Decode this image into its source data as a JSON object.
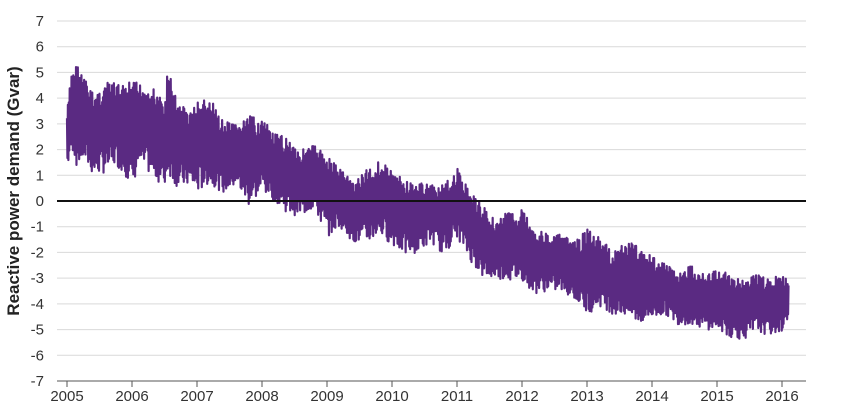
{
  "chart_data": {
    "type": "line",
    "title": "",
    "xlabel": "",
    "ylabel": "Reactive power demand (Gvar)",
    "x_ticks": [
      "2005",
      "2006",
      "2007",
      "2008",
      "2009",
      "2010",
      "2011",
      "2012",
      "2013",
      "2014",
      "2015",
      "2016"
    ],
    "y_ticks": [
      "7",
      "6",
      "5",
      "4",
      "3",
      "2",
      "1",
      "0",
      "-1",
      "-2",
      "-3",
      "-4",
      "-5",
      "-6",
      "-7"
    ],
    "xlim": [
      2005,
      2016.2
    ],
    "ylim": [
      -7,
      7
    ],
    "grid": true,
    "zero_line": true,
    "colors": {
      "series": "#5a2a82",
      "grid": "#d9d9d9",
      "zero_line": "#111111",
      "axis": "#555555"
    },
    "series": [
      {
        "name": "",
        "envelope": {
          "x": [
            2005.0,
            2005.08,
            2005.15,
            2005.25,
            2005.4,
            2005.6,
            2005.75,
            2005.9,
            2006.0,
            2006.1,
            2006.3,
            2006.5,
            2006.55,
            2006.7,
            2006.9,
            2007.0,
            2007.2,
            2007.4,
            2007.6,
            2007.8,
            2008.0,
            2008.2,
            2008.4,
            2008.6,
            2008.8,
            2009.0,
            2009.2,
            2009.4,
            2009.6,
            2009.8,
            2010.0,
            2010.2,
            2010.4,
            2010.6,
            2010.8,
            2011.0,
            2011.2,
            2011.4,
            2011.6,
            2011.8,
            2012.0,
            2012.2,
            2012.4,
            2012.6,
            2012.8,
            2013.0,
            2013.2,
            2013.4,
            2013.6,
            2013.8,
            2014.0,
            2014.2,
            2014.4,
            2014.6,
            2014.8,
            2015.0,
            2015.2,
            2015.4,
            2015.6,
            2015.8,
            2016.0,
            2016.1
          ],
          "high": [
            3.5,
            5.3,
            5.4,
            4.9,
            4.2,
            4.6,
            4.6,
            4.5,
            4.7,
            4.6,
            4.5,
            3.8,
            5.2,
            3.9,
            3.5,
            3.9,
            4.0,
            3.1,
            3.0,
            3.3,
            3.2,
            2.6,
            2.5,
            2.0,
            2.2,
            1.8,
            1.3,
            0.8,
            1.2,
            1.6,
            1.2,
            0.8,
            0.7,
            0.7,
            0.6,
            1.3,
            0.4,
            -0.2,
            -0.7,
            -0.4,
            -0.3,
            -1.0,
            -1.3,
            -1.3,
            -1.6,
            -1.1,
            -1.4,
            -2.0,
            -1.5,
            -1.7,
            -2.1,
            -2.4,
            -2.8,
            -2.5,
            -2.8,
            -2.7,
            -2.8,
            -3.1,
            -2.8,
            -3.0,
            -2.9,
            -3.0
          ],
          "low": [
            1.2,
            2.0,
            1.3,
            1.6,
            1.0,
            1.1,
            1.4,
            1.0,
            0.4,
            1.4,
            1.0,
            0.5,
            1.1,
            0.5,
            0.6,
            0.3,
            0.7,
            0.3,
            0.6,
            -0.2,
            0.4,
            0.0,
            -0.5,
            -0.6,
            -0.3,
            -1.4,
            -1.0,
            -1.6,
            -1.7,
            -1.3,
            -1.7,
            -2.1,
            -2.0,
            -1.6,
            -2.1,
            -1.4,
            -2.3,
            -3.0,
            -3.0,
            -3.1,
            -3.1,
            -3.6,
            -3.5,
            -3.5,
            -3.8,
            -4.4,
            -4.1,
            -4.4,
            -4.5,
            -4.8,
            -4.6,
            -4.4,
            -4.8,
            -4.8,
            -5.0,
            -5.0,
            -5.3,
            -5.4,
            -5.1,
            -5.2,
            -5.1,
            -4.5
          ]
        }
      }
    ]
  }
}
